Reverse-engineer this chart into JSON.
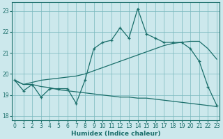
{
  "xlabel": "Humidex (Indice chaleur)",
  "background_color": "#cce8ec",
  "grid_color": "#7ab8be",
  "line_color": "#1a6e6a",
  "x_ticks": [
    0,
    1,
    2,
    3,
    4,
    5,
    6,
    7,
    8,
    9,
    10,
    11,
    12,
    13,
    14,
    15,
    16,
    17,
    18,
    19,
    20,
    21,
    22,
    23
  ],
  "y_ticks": [
    18,
    19,
    20,
    21,
    22,
    23
  ],
  "ylim": [
    17.8,
    23.4
  ],
  "xlim": [
    -0.3,
    23.3
  ],
  "series1_x": [
    0,
    1,
    2,
    3,
    4,
    5,
    6,
    7,
    8,
    9,
    10,
    11,
    12,
    13,
    14,
    15,
    16,
    17,
    18,
    19,
    20,
    21,
    22,
    23
  ],
  "series1_y": [
    19.7,
    19.2,
    19.5,
    18.9,
    19.3,
    19.3,
    19.3,
    18.6,
    19.7,
    21.2,
    21.5,
    21.6,
    22.2,
    21.7,
    23.1,
    21.9,
    21.7,
    21.5,
    21.5,
    21.5,
    21.2,
    20.6,
    19.4,
    18.5
  ],
  "series2_x": [
    0,
    1,
    2,
    3,
    4,
    5,
    6,
    7,
    8,
    9,
    10,
    11,
    12,
    13,
    14,
    15,
    16,
    17,
    18,
    19,
    20,
    21,
    22,
    23
  ],
  "series2_y": [
    19.7,
    19.5,
    19.6,
    19.7,
    19.75,
    19.8,
    19.85,
    19.9,
    20.0,
    20.15,
    20.3,
    20.45,
    20.6,
    20.75,
    20.9,
    21.05,
    21.2,
    21.35,
    21.45,
    21.5,
    21.55,
    21.55,
    21.2,
    20.7
  ],
  "series3_x": [
    0,
    1,
    2,
    3,
    4,
    5,
    6,
    7,
    8,
    9,
    10,
    11,
    12,
    13,
    14,
    15,
    16,
    17,
    18,
    19,
    20,
    21,
    22,
    23
  ],
  "series3_y": [
    19.7,
    19.5,
    19.5,
    19.4,
    19.35,
    19.25,
    19.2,
    19.15,
    19.1,
    19.05,
    19.0,
    18.95,
    18.9,
    18.9,
    18.85,
    18.85,
    18.8,
    18.75,
    18.7,
    18.65,
    18.6,
    18.55,
    18.5,
    18.45
  ]
}
